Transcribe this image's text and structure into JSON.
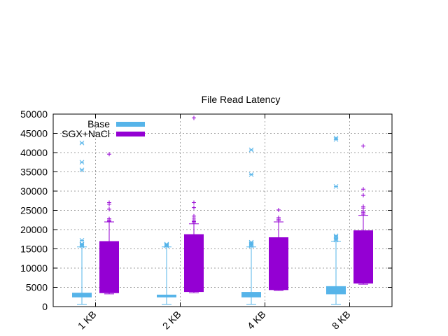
{
  "chart_data": {
    "type": "boxplot",
    "title": "File Read Latency",
    "xlabel": "",
    "ylabel": "",
    "ylim": [
      0,
      50000
    ],
    "yticks": [
      0,
      5000,
      10000,
      15000,
      20000,
      25000,
      30000,
      35000,
      40000,
      45000,
      50000
    ],
    "categories": [
      "1 KB",
      "2 KB",
      "4 KB",
      "8 KB"
    ],
    "grid": true,
    "legend_position": "top-left",
    "series": [
      {
        "name": "Base",
        "color": "#56b4e9",
        "outlier_marker": "asterisk",
        "boxes": [
          {
            "q1": 2400,
            "q3": 3600,
            "whisker_low": 600,
            "whisker_high": 15500,
            "outliers": [
              15800,
              16100,
              16300,
              17200,
              35500,
              37500,
              42500
            ]
          },
          {
            "q1": 2400,
            "q3": 3100,
            "whisker_low": 600,
            "whisker_high": 15500,
            "outliers": [
              15800,
              16000,
              16200
            ]
          },
          {
            "q1": 2400,
            "q3": 3800,
            "whisker_low": 600,
            "whisker_high": 15500,
            "outliers": [
              15800,
              16100,
              16400,
              16700,
              34300,
              40700
            ]
          },
          {
            "q1": 3200,
            "q3": 5300,
            "whisker_low": 600,
            "whisker_high": 17000,
            "outliers": [
              17300,
              17700,
              18100,
              18400,
              31200,
              43400,
              43800
            ]
          }
        ]
      },
      {
        "name": "SGX+NaCl",
        "color": "#9400d3",
        "outlier_marker": "plus",
        "boxes": [
          {
            "q1": 3500,
            "q3": 17000,
            "whisker_low": 3300,
            "whisker_high": 22000,
            "outliers": [
              22200,
              22500,
              22800,
              25300,
              26600,
              27000,
              39600
            ]
          },
          {
            "q1": 3800,
            "q3": 18800,
            "whisker_low": 3600,
            "whisker_high": 21500,
            "outliers": [
              21800,
              22100,
              22500,
              23000,
              23500,
              25700,
              27000,
              49000
            ]
          },
          {
            "q1": 4300,
            "q3": 18000,
            "whisker_low": 4200,
            "whisker_high": 22000,
            "outliers": [
              22300,
              22700,
              23100,
              25100
            ]
          },
          {
            "q1": 6000,
            "q3": 19800,
            "whisker_low": 5800,
            "whisker_high": 23700,
            "outliers": [
              24000,
              24400,
              24800,
              25600,
              26000,
              28900,
              30500,
              41700
            ]
          }
        ]
      }
    ]
  }
}
